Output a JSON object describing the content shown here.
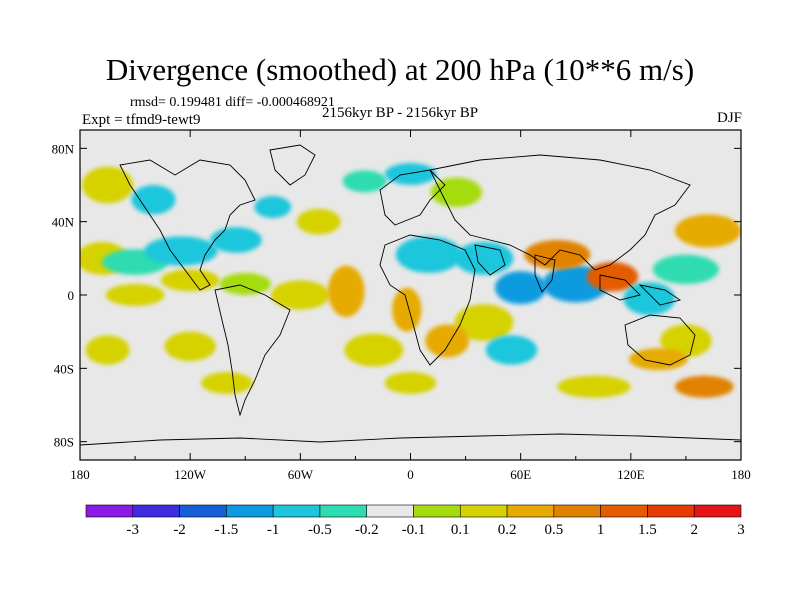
{
  "header": {
    "title": "Divergence (smoothed) at 200 hPa (10**6 m/s)",
    "stats": "rmsd= 0.199481 diff= -0.000468921",
    "experiment": "Expt = tfmd9-tewt9",
    "period": "2156kyr BP - 2156kyr BP",
    "season": "DJF"
  },
  "chart_data": {
    "type": "map",
    "projection": "cylindrical-equidistant",
    "xlim": [
      -180,
      180
    ],
    "ylim": [
      -90,
      90
    ],
    "x_ticks": [
      {
        "value": -180,
        "label": "180"
      },
      {
        "value": -120,
        "label": "120W"
      },
      {
        "value": -60,
        "label": "60W"
      },
      {
        "value": 0,
        "label": "0"
      },
      {
        "value": 60,
        "label": "60E"
      },
      {
        "value": 120,
        "label": "120E"
      },
      {
        "value": 180,
        "label": "180"
      }
    ],
    "y_ticks": [
      {
        "value": 80,
        "label": "80N"
      },
      {
        "value": 40,
        "label": "40N"
      },
      {
        "value": 0,
        "label": "0"
      },
      {
        "value": -40,
        "label": "40S"
      },
      {
        "value": -80,
        "label": "80S"
      }
    ],
    "colorbar": {
      "labels": [
        "-3",
        "-2",
        "-1.5",
        "-1",
        "-0.5",
        "-0.2",
        "-0.1",
        "0.1",
        "0.2",
        "0.5",
        "1",
        "1.5",
        "2",
        "3"
      ],
      "colors": [
        "#8c1ae6",
        "#3c2ee0",
        "#1560d8",
        "#0c9be0",
        "#1ec6dc",
        "#2ddcb0",
        "#e8e8e8",
        "#a4dc10",
        "#d6d200",
        "#e6aa00",
        "#e08200",
        "#e45c00",
        "#e63a00",
        "#e61414"
      ]
    },
    "field_patches": [
      {
        "lon": -168,
        "lat": 20,
        "rx": 14,
        "ry": 9,
        "level": 8
      },
      {
        "lon": -150,
        "lat": 18,
        "rx": 18,
        "ry": 7,
        "level": 5
      },
      {
        "lon": -125,
        "lat": 24,
        "rx": 20,
        "ry": 8,
        "level": 4
      },
      {
        "lon": -95,
        "lat": 30,
        "rx": 14,
        "ry": 7,
        "level": 4
      },
      {
        "lon": -165,
        "lat": 60,
        "rx": 14,
        "ry": 10,
        "level": 8
      },
      {
        "lon": -140,
        "lat": 52,
        "rx": 12,
        "ry": 8,
        "level": 4
      },
      {
        "lon": -75,
        "lat": 48,
        "rx": 10,
        "ry": 6,
        "level": 4
      },
      {
        "lon": -50,
        "lat": 40,
        "rx": 12,
        "ry": 7,
        "level": 8
      },
      {
        "lon": -25,
        "lat": 62,
        "rx": 12,
        "ry": 6,
        "level": 5
      },
      {
        "lon": 0,
        "lat": 66,
        "rx": 14,
        "ry": 6,
        "level": 4
      },
      {
        "lon": 25,
        "lat": 56,
        "rx": 14,
        "ry": 8,
        "level": 7
      },
      {
        "lon": -150,
        "lat": 0,
        "rx": 16,
        "ry": 6,
        "level": 8
      },
      {
        "lon": -120,
        "lat": 8,
        "rx": 16,
        "ry": 6,
        "level": 8
      },
      {
        "lon": -90,
        "lat": 6,
        "rx": 14,
        "ry": 6,
        "level": 7
      },
      {
        "lon": -60,
        "lat": 0,
        "rx": 16,
        "ry": 8,
        "level": 8
      },
      {
        "lon": -35,
        "lat": 2,
        "rx": 10,
        "ry": 14,
        "level": 9
      },
      {
        "lon": -2,
        "lat": -8,
        "rx": 8,
        "ry": 12,
        "level": 9
      },
      {
        "lon": 10,
        "lat": 22,
        "rx": 18,
        "ry": 10,
        "level": 4
      },
      {
        "lon": 40,
        "lat": 20,
        "rx": 16,
        "ry": 9,
        "level": 4
      },
      {
        "lon": 60,
        "lat": 4,
        "rx": 14,
        "ry": 9,
        "level": 3
      },
      {
        "lon": 90,
        "lat": 6,
        "rx": 18,
        "ry": 10,
        "level": 3
      },
      {
        "lon": 80,
        "lat": 22,
        "rx": 18,
        "ry": 8,
        "level": 10
      },
      {
        "lon": 110,
        "lat": 10,
        "rx": 14,
        "ry": 8,
        "level": 11
      },
      {
        "lon": 130,
        "lat": -2,
        "rx": 14,
        "ry": 9,
        "level": 4
      },
      {
        "lon": 150,
        "lat": 14,
        "rx": 18,
        "ry": 8,
        "level": 5
      },
      {
        "lon": 162,
        "lat": 35,
        "rx": 18,
        "ry": 9,
        "level": 9
      },
      {
        "lon": 150,
        "lat": -25,
        "rx": 14,
        "ry": 9,
        "level": 8
      },
      {
        "lon": 135,
        "lat": -35,
        "rx": 16,
        "ry": 6,
        "level": 9
      },
      {
        "lon": 40,
        "lat": -15,
        "rx": 16,
        "ry": 10,
        "level": 8
      },
      {
        "lon": 55,
        "lat": -30,
        "rx": 14,
        "ry": 8,
        "level": 4
      },
      {
        "lon": 20,
        "lat": -25,
        "rx": 12,
        "ry": 9,
        "level": 9
      },
      {
        "lon": -20,
        "lat": -30,
        "rx": 16,
        "ry": 9,
        "level": 8
      },
      {
        "lon": -120,
        "lat": -28,
        "rx": 14,
        "ry": 8,
        "level": 8
      },
      {
        "lon": -165,
        "lat": -30,
        "rx": 12,
        "ry": 8,
        "level": 8
      },
      {
        "lon": -100,
        "lat": -48,
        "rx": 14,
        "ry": 6,
        "level": 8
      },
      {
        "lon": 100,
        "lat": -50,
        "rx": 20,
        "ry": 6,
        "level": 8
      },
      {
        "lon": 160,
        "lat": -50,
        "rx": 16,
        "ry": 6,
        "level": 10
      },
      {
        "lon": 0,
        "lat": -48,
        "rx": 14,
        "ry": 6,
        "level": 8
      }
    ]
  }
}
